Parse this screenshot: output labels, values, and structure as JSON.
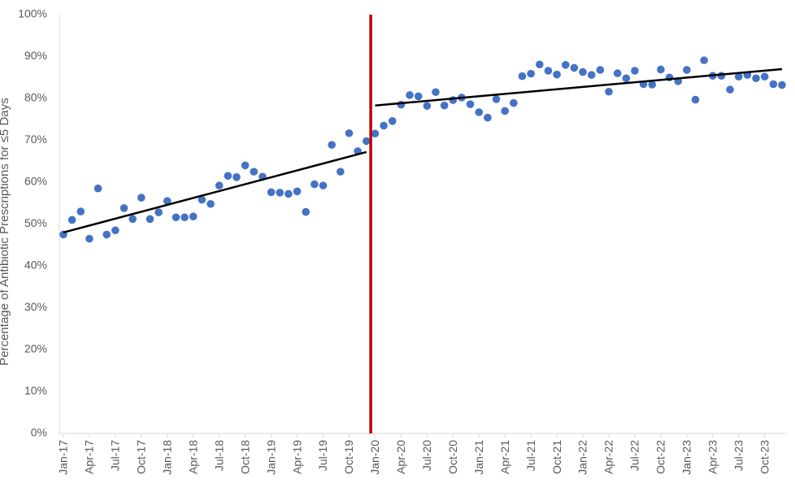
{
  "chart_data": {
    "type": "scatter",
    "y_label": "Percentage of Antibiotic Prescriptions for ≤5 Days",
    "categories": [
      "Jan-17",
      null,
      null,
      "Apr-17",
      null,
      null,
      "Jul-17",
      null,
      null,
      "Oct-17",
      null,
      null,
      "Jan-18",
      null,
      null,
      "Apr-18",
      null,
      null,
      "Jul-18",
      null,
      null,
      "Oct-18",
      null,
      null,
      "Jan-19",
      null,
      null,
      "Apr-19",
      null,
      null,
      "Jul-19",
      null,
      null,
      "Oct-19",
      null,
      null,
      "Jan-20",
      null,
      null,
      "Apr-20",
      null,
      null,
      "Jul-20",
      null,
      null,
      "Oct-20",
      null,
      null,
      "Jan-21",
      null,
      null,
      "Apr-21",
      null,
      null,
      "Jul-21",
      null,
      null,
      "Oct-21",
      null,
      null,
      "Jan-22",
      null,
      null,
      "Apr-22",
      null,
      null,
      "Jul-22",
      null,
      null,
      "Oct-22",
      null,
      null,
      "Jan-23",
      null,
      null,
      "Apr-23",
      null,
      null,
      "Jul-23",
      null,
      null,
      "Oct-23",
      null,
      null
    ],
    "values": [
      47.5,
      51,
      53,
      46.5,
      58.5,
      47.5,
      48.5,
      53.8,
      51.2,
      56.3,
      51.2,
      52.8,
      55.5,
      51.6,
      51.6,
      51.8,
      55.8,
      54.8,
      59.2,
      61.5,
      61.2,
      64,
      62.5,
      61.3,
      57.6,
      57.5,
      57.2,
      57.8,
      52.9,
      59.5,
      59.2,
      68.9,
      62.5,
      71.7,
      67.4,
      69.8,
      71.6,
      73.5,
      74.6,
      78.5,
      80.8,
      80.5,
      78.2,
      81.5,
      78.3,
      79.6,
      80.2,
      78.6,
      76.7,
      75.4,
      79.8,
      77,
      78.9,
      85.3,
      85.9,
      88.1,
      86.6,
      85.7,
      88,
      87.3,
      86.3,
      85.6,
      86.8,
      81.6,
      86,
      84.8,
      86.6,
      83.4,
      83.3,
      86.9,
      85,
      84.1,
      86.8,
      79.7,
      89.1,
      85.4,
      85.4,
      82.1,
      85.2,
      85.6,
      84.8,
      85.2,
      83.4,
      83.2
    ],
    "color": "#4472c4",
    "trendlines": [
      {
        "x": [
          0,
          35
        ],
        "values": [
          48,
          67.2
        ],
        "color": "#000000"
      },
      {
        "x": [
          36,
          83
        ],
        "values": [
          78.3,
          87
        ],
        "color": "#000000"
      }
    ],
    "vline": {
      "x": 35.5,
      "color": "#c00000"
    },
    "ylim": [
      0,
      100
    ],
    "yticks": [
      {
        "value": 0,
        "label": "0%"
      },
      {
        "value": 10,
        "label": "10%"
      },
      {
        "value": 20,
        "label": "20%"
      },
      {
        "value": 30,
        "label": "30%"
      },
      {
        "value": 40,
        "label": "40%"
      },
      {
        "value": 50,
        "label": "50%"
      },
      {
        "value": 60,
        "label": "60%"
      },
      {
        "value": 70,
        "label": "70%"
      },
      {
        "value": 80,
        "label": "80%"
      },
      {
        "value": 90,
        "label": "90%"
      },
      {
        "value": 100,
        "label": "100%"
      }
    ],
    "grid": false
  }
}
